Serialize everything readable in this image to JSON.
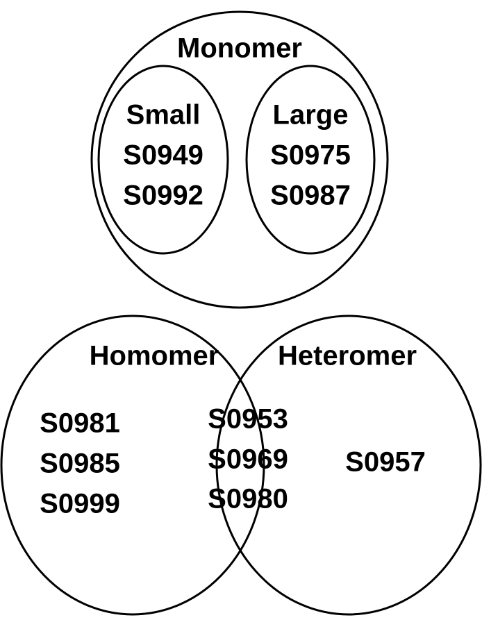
{
  "monomer": {
    "label": "Monomer",
    "small": {
      "label": "Small",
      "items": [
        "S0949",
        "S0992"
      ]
    },
    "large": {
      "label": "Large",
      "items": [
        "S0975",
        "S0987"
      ]
    }
  },
  "homomer": {
    "label": "Homomer",
    "items": [
      "S0981",
      "S0985",
      "S0999"
    ]
  },
  "heteromer": {
    "label": "Heteromer",
    "items": [
      "S0957"
    ]
  },
  "intersection": {
    "items": [
      "S0953",
      "S0969",
      "S0980"
    ]
  }
}
